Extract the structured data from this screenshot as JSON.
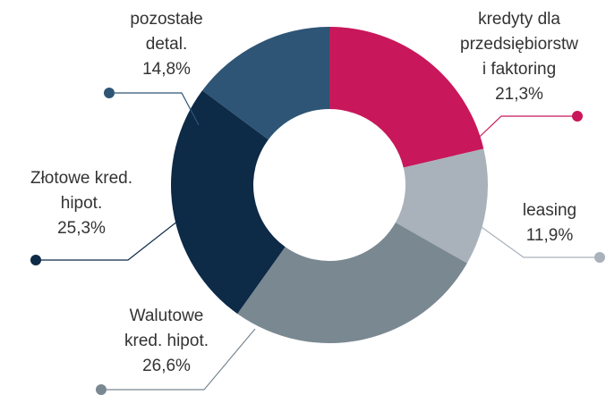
{
  "chart_data": {
    "type": "donut",
    "categories": [
      [
        "kredyty dla",
        "przedsiębiorstw",
        "i faktoring"
      ],
      [
        "leasing"
      ],
      [
        "Walutowe",
        "kred. hipot."
      ],
      [
        "Złotowe kred.",
        "hipot."
      ],
      [
        "pozostałe",
        "detal."
      ]
    ],
    "values": [
      21.3,
      11.9,
      26.6,
      25.3,
      14.8
    ],
    "value_labels": [
      "21,3%",
      "11,9%",
      "26,6%",
      "25,3%",
      "14,8%"
    ],
    "colors": [
      "#c8175a",
      "#a9b2ba",
      "#7a8891",
      "#0d2a47",
      "#2e5576"
    ]
  }
}
